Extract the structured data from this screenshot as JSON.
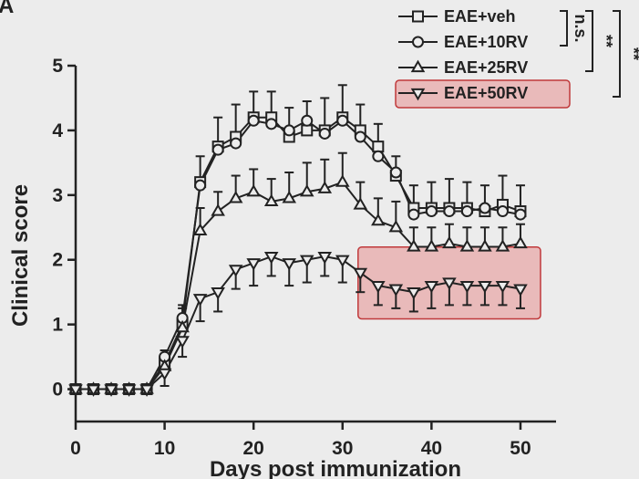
{
  "panel_label": "A",
  "colors": {
    "background": "#ececec",
    "ink": "#222222",
    "highlight_fill": "#e8aaaa",
    "highlight_stroke": "#c0393b"
  },
  "significance": [
    {
      "label": "n.s.",
      "between": [
        "EAE+veh",
        "EAE+10RV"
      ]
    },
    {
      "label": "**",
      "between": [
        "EAE+veh",
        "EAE+25RV"
      ]
    },
    {
      "label": "**",
      "between": [
        "EAE+veh",
        "EAE+50RV"
      ]
    }
  ],
  "highlights": [
    {
      "target": "legend",
      "series": "EAE+50RV"
    },
    {
      "target": "points",
      "series": "EAE+50RV",
      "x_from": 34,
      "x_to": 50
    }
  ],
  "chart_data": {
    "type": "line",
    "title": "",
    "xlabel": "Days post immunization",
    "ylabel": "Clinical score",
    "xlim": [
      0,
      54
    ],
    "ylim": [
      -0.5,
      5
    ],
    "xticks": [
      0,
      10,
      20,
      30,
      40,
      50
    ],
    "yticks": [
      0,
      1,
      2,
      3,
      4,
      5
    ],
    "grid": false,
    "legend_position": "top-right",
    "x": [
      0,
      2,
      4,
      6,
      8,
      10,
      12,
      14,
      16,
      18,
      20,
      22,
      24,
      26,
      28,
      30,
      32,
      34,
      36,
      38,
      40,
      42,
      44,
      46,
      48,
      50
    ],
    "series": [
      {
        "name": "EAE+veh",
        "marker": "square",
        "values": [
          0,
          0,
          0,
          0,
          0,
          0.4,
          1.0,
          3.2,
          3.75,
          3.9,
          4.2,
          4.2,
          3.9,
          4.0,
          4.0,
          4.2,
          4.0,
          3.75,
          3.3,
          2.8,
          2.8,
          2.8,
          2.8,
          2.75,
          2.85,
          2.75
        ],
        "errors": [
          0,
          0,
          0,
          0,
          0,
          0.2,
          0.3,
          0.4,
          0.45,
          0.5,
          0.4,
          0.4,
          0.45,
          0.45,
          0.5,
          0.5,
          0.4,
          0.35,
          0.3,
          0.35,
          0.4,
          0.45,
          0.4,
          0.4,
          0.45,
          0.4
        ]
      },
      {
        "name": "EAE+10RV",
        "marker": "circle",
        "values": [
          0,
          0,
          0,
          0,
          0,
          0.5,
          1.1,
          3.15,
          3.7,
          3.8,
          4.15,
          4.1,
          4.0,
          4.15,
          3.95,
          4.15,
          3.9,
          3.6,
          3.35,
          2.7,
          2.75,
          2.75,
          2.75,
          2.8,
          2.75,
          2.7
        ]
      },
      {
        "name": "EAE+25RV",
        "marker": "triangle-up",
        "values": [
          0,
          0,
          0,
          0,
          0,
          0.35,
          0.95,
          2.45,
          2.75,
          2.95,
          3.05,
          2.9,
          2.95,
          3.05,
          3.1,
          3.2,
          2.85,
          2.6,
          2.5,
          2.2,
          2.2,
          2.25,
          2.2,
          2.2,
          2.2,
          2.25
        ],
        "errors": [
          0,
          0,
          0,
          0,
          0,
          0.15,
          0.3,
          0.35,
          0.3,
          0.35,
          0.35,
          0.35,
          0.4,
          0.45,
          0.45,
          0.45,
          0.35,
          0.35,
          0.4,
          0.3,
          0.3,
          0.3,
          0.3,
          0.3,
          0.3,
          0.3
        ]
      },
      {
        "name": "EAE+50RV",
        "marker": "triangle-down",
        "values": [
          0,
          0,
          0,
          0,
          0,
          0.25,
          0.75,
          1.4,
          1.5,
          1.85,
          1.95,
          2.05,
          1.95,
          2.0,
          2.05,
          2.0,
          1.8,
          1.6,
          1.55,
          1.5,
          1.6,
          1.65,
          1.6,
          1.6,
          1.6,
          1.55
        ],
        "errors": [
          0,
          0,
          0,
          0,
          0,
          0.2,
          0.25,
          0.35,
          0.3,
          0.3,
          0.35,
          0.3,
          0.35,
          0.35,
          0.3,
          0.35,
          0.3,
          0.3,
          0.3,
          0.3,
          0.35,
          0.35,
          0.3,
          0.3,
          0.3,
          0.3
        ]
      }
    ]
  }
}
